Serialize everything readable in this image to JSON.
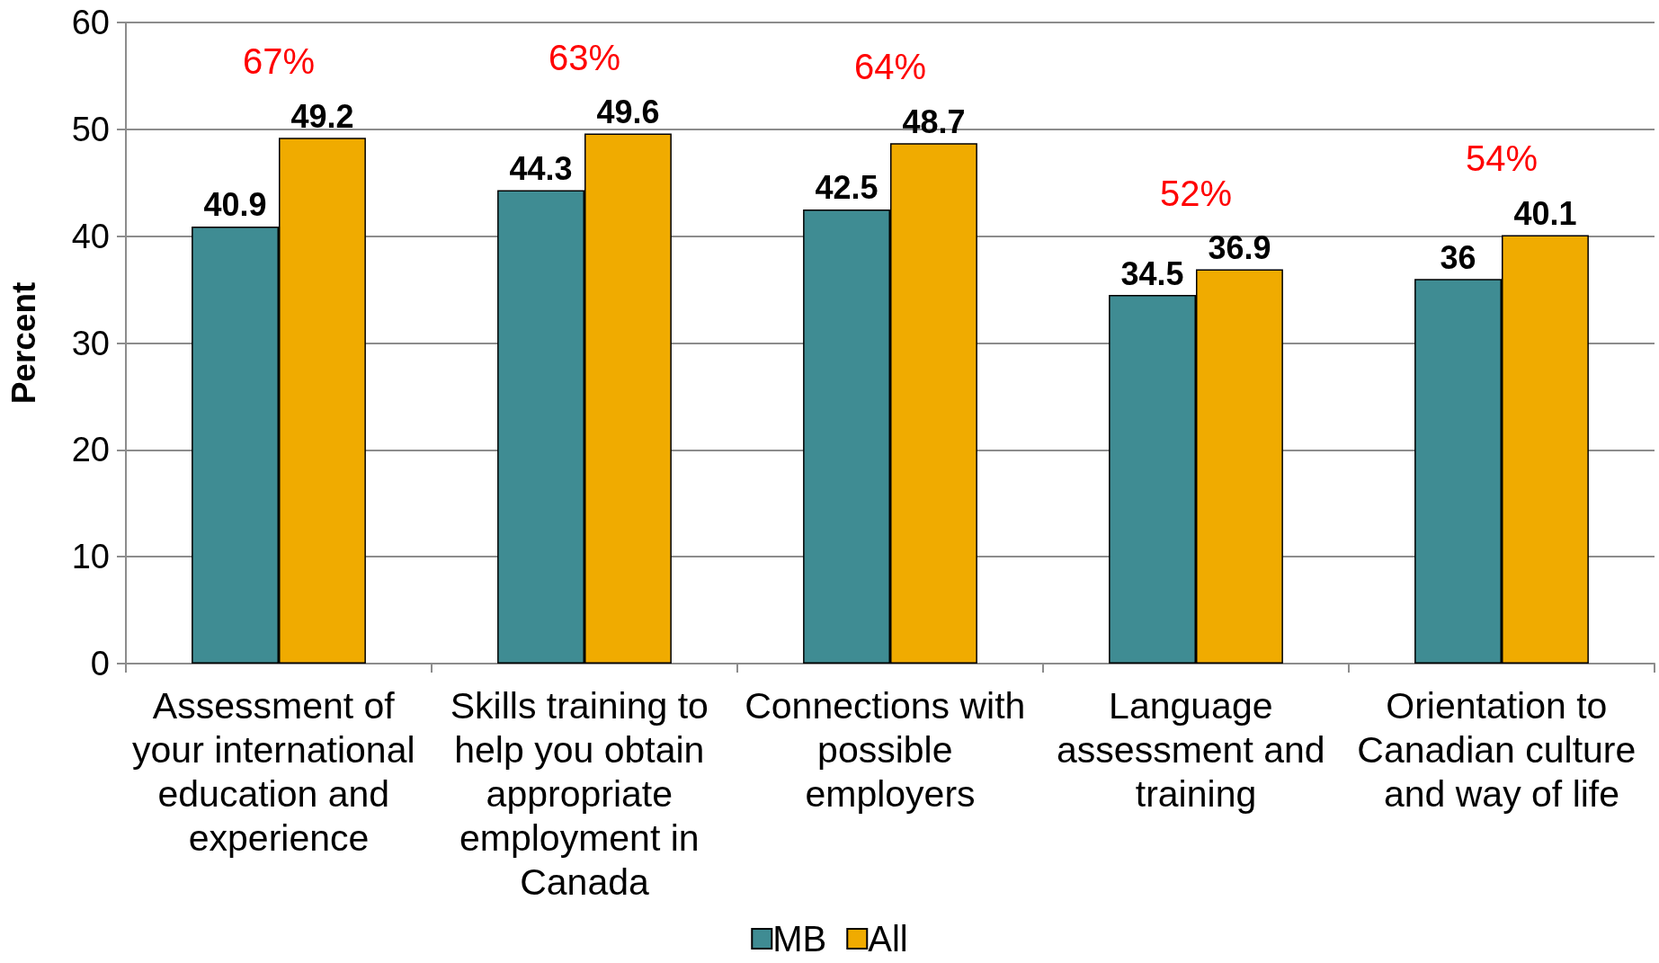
{
  "chart_data": {
    "type": "bar",
    "categories": [
      "Assessment of your international education and experience",
      "Skills training to help you obtain appropriate employment in Canada",
      "Connections with possible employers",
      "Language assessment and training",
      "Orientation to Canadian culture and way of life"
    ],
    "series": [
      {
        "name": "MB",
        "color": "#3f8c93",
        "values": [
          40.9,
          44.3,
          42.5,
          34.5,
          36
        ]
      },
      {
        "name": "All",
        "color": "#f0ab00",
        "values": [
          49.2,
          49.6,
          48.7,
          36.9,
          40.1
        ]
      }
    ],
    "ylabel": "Percent",
    "ylim": [
      0,
      60
    ],
    "yticks": [
      0,
      10,
      20,
      30,
      40,
      50,
      60
    ],
    "grid": "y",
    "legend": "bottom",
    "data_labels": true,
    "annotations": [
      "67%",
      "63%",
      "64%",
      "52%",
      "54%"
    ]
  }
}
